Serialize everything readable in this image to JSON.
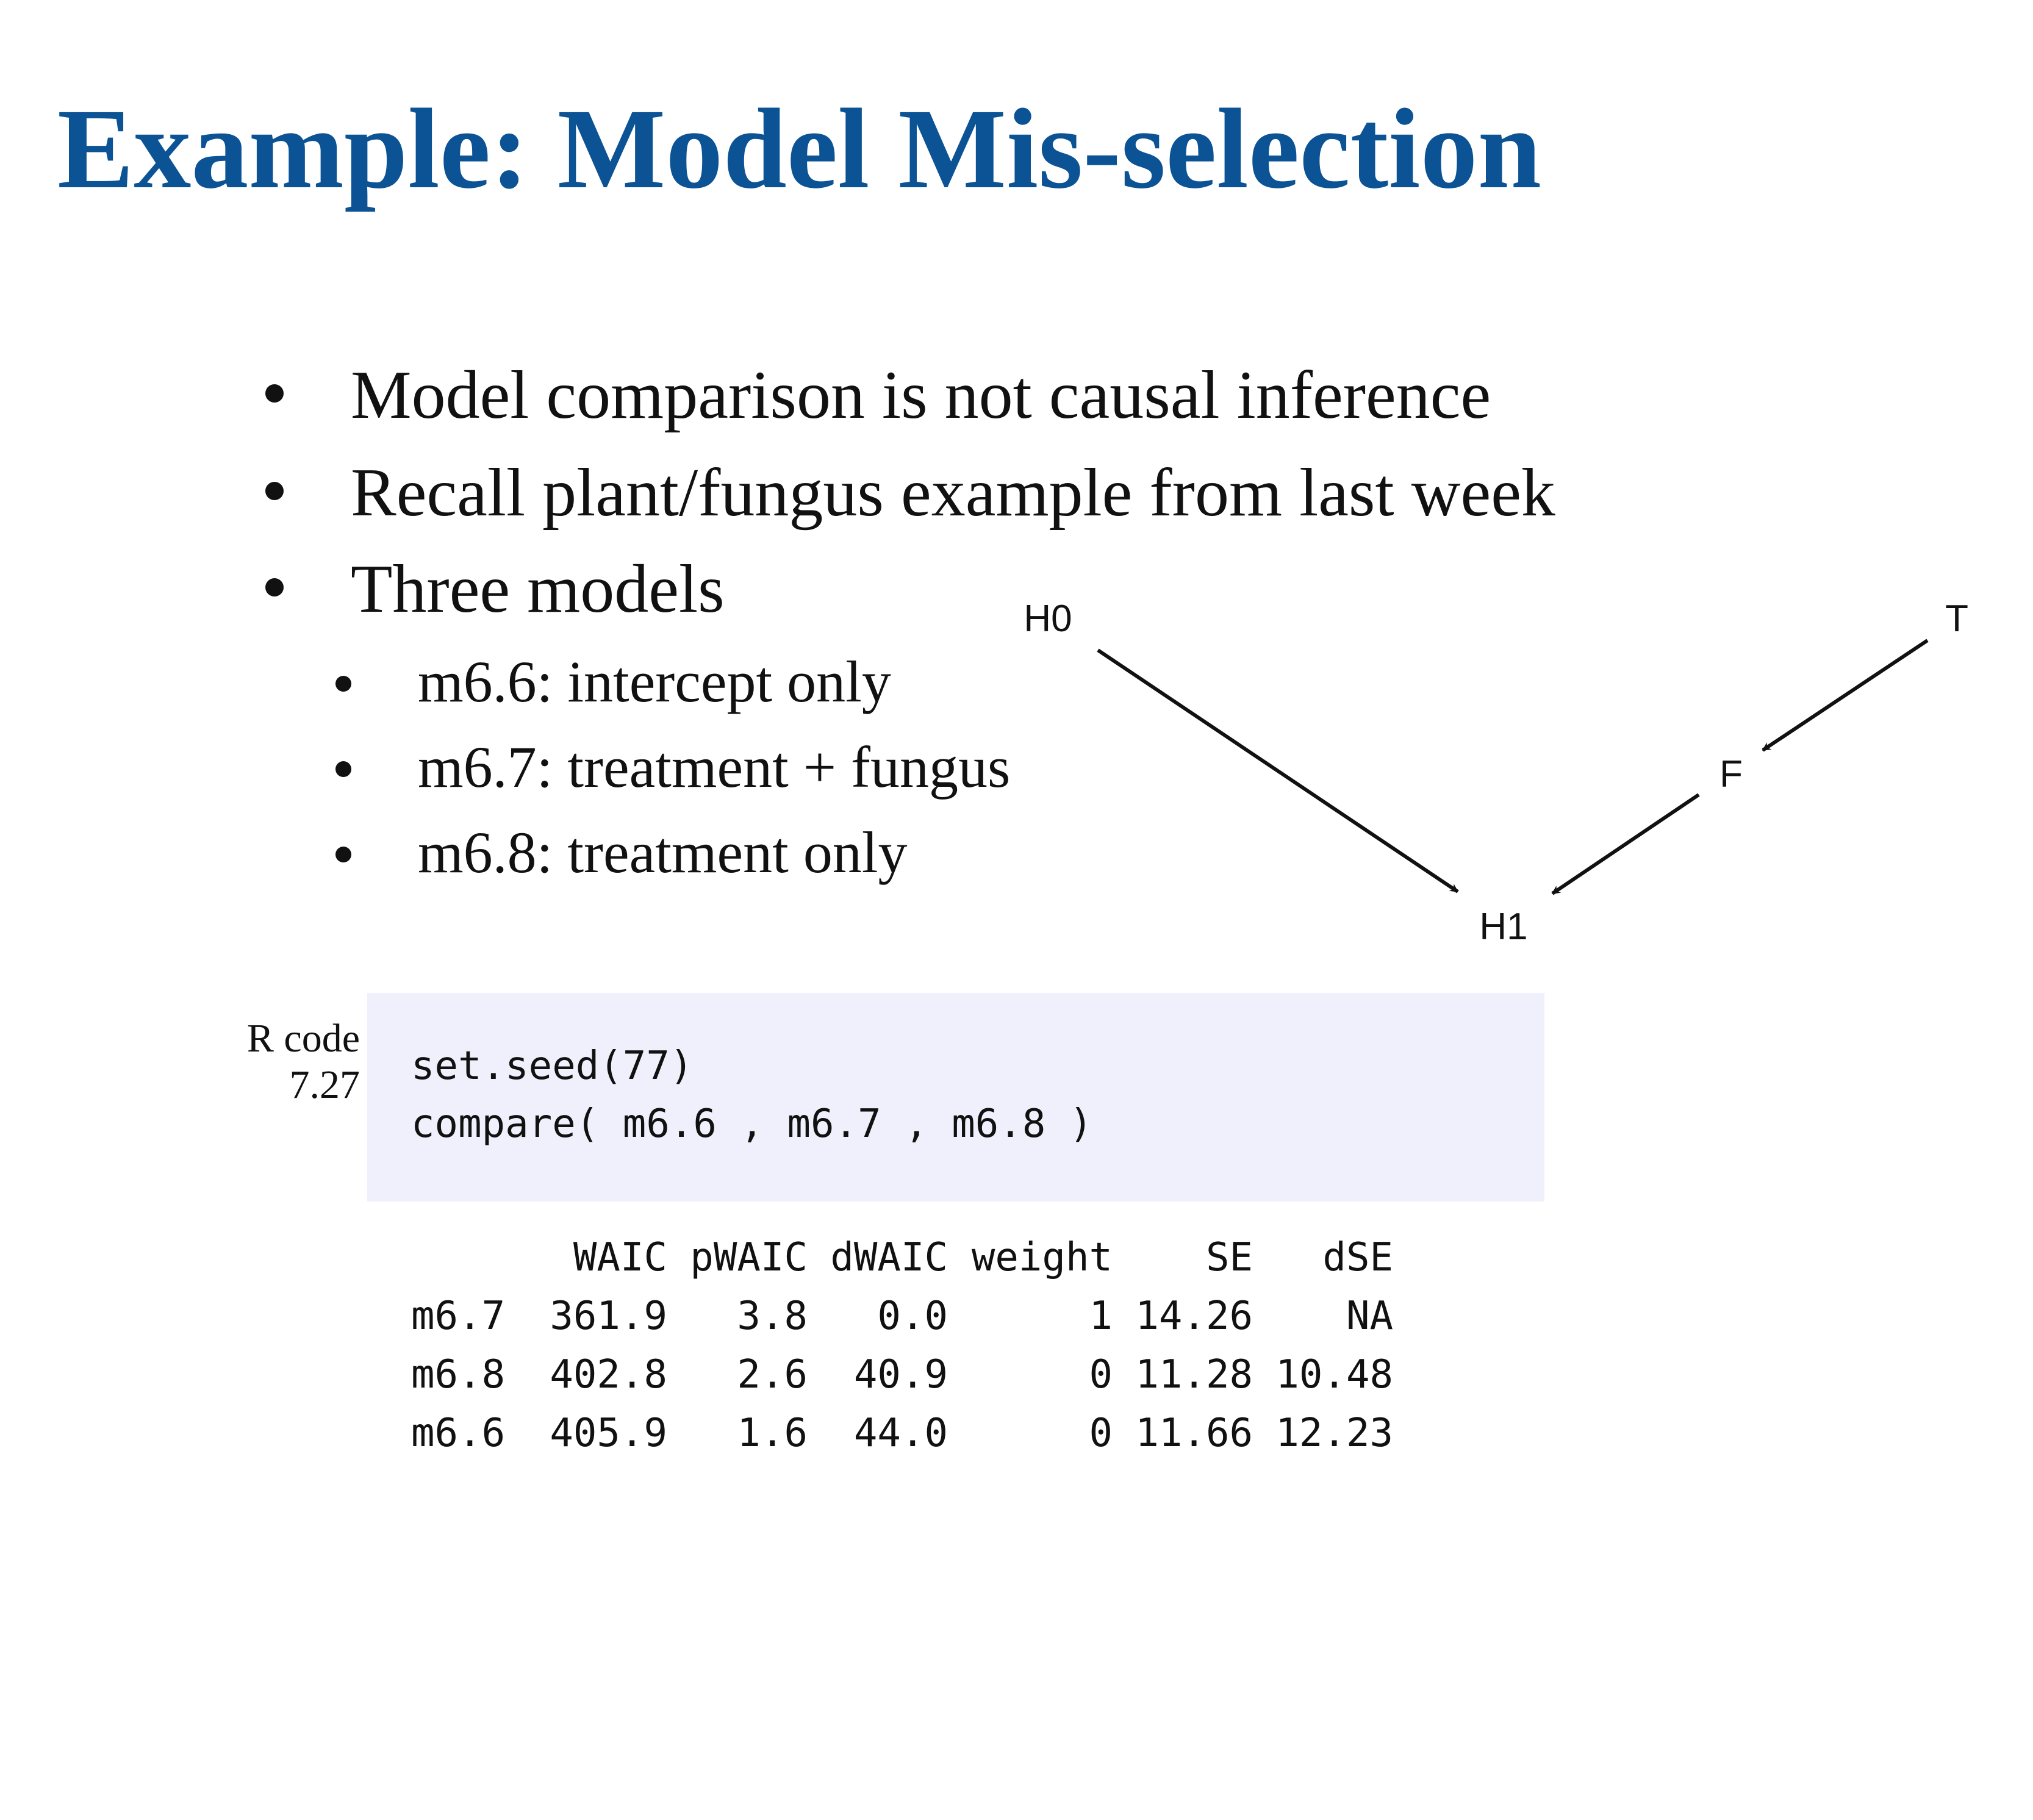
{
  "slide": {
    "title": "Example: Model Mis-selection",
    "bullets": [
      "Model comparison is not causal inference",
      "Recall plant/fungus example from last week",
      "Three models"
    ],
    "sub_bullets": [
      "m6.6: intercept only",
      "m6.7: treatment + fungus",
      "m6.8: treatment only"
    ]
  },
  "dag": {
    "nodes": [
      "H0",
      "T",
      "F",
      "H1"
    ],
    "edges": [
      [
        "H0",
        "H1"
      ],
      [
        "T",
        "F"
      ],
      [
        "F",
        "H1"
      ]
    ]
  },
  "code": {
    "label_line1": "R code",
    "label_line2": "7.27",
    "lines": [
      "set.seed(77)",
      "compare( m6.6 , m6.7 , m6.8 )"
    ]
  },
  "output_table": {
    "headers": [
      "",
      "WAIC",
      "pWAIC",
      "dWAIC",
      "weight",
      "SE",
      "dSE"
    ],
    "rows": [
      [
        "m6.7",
        "361.9",
        "3.8",
        "0.0",
        "1",
        "14.26",
        "NA"
      ],
      [
        "m6.8",
        "402.8",
        "2.6",
        "40.9",
        "0",
        "11.28",
        "10.48"
      ],
      [
        "m6.6",
        "405.9",
        "1.6",
        "44.0",
        "0",
        "11.66",
        "12.23"
      ]
    ]
  }
}
